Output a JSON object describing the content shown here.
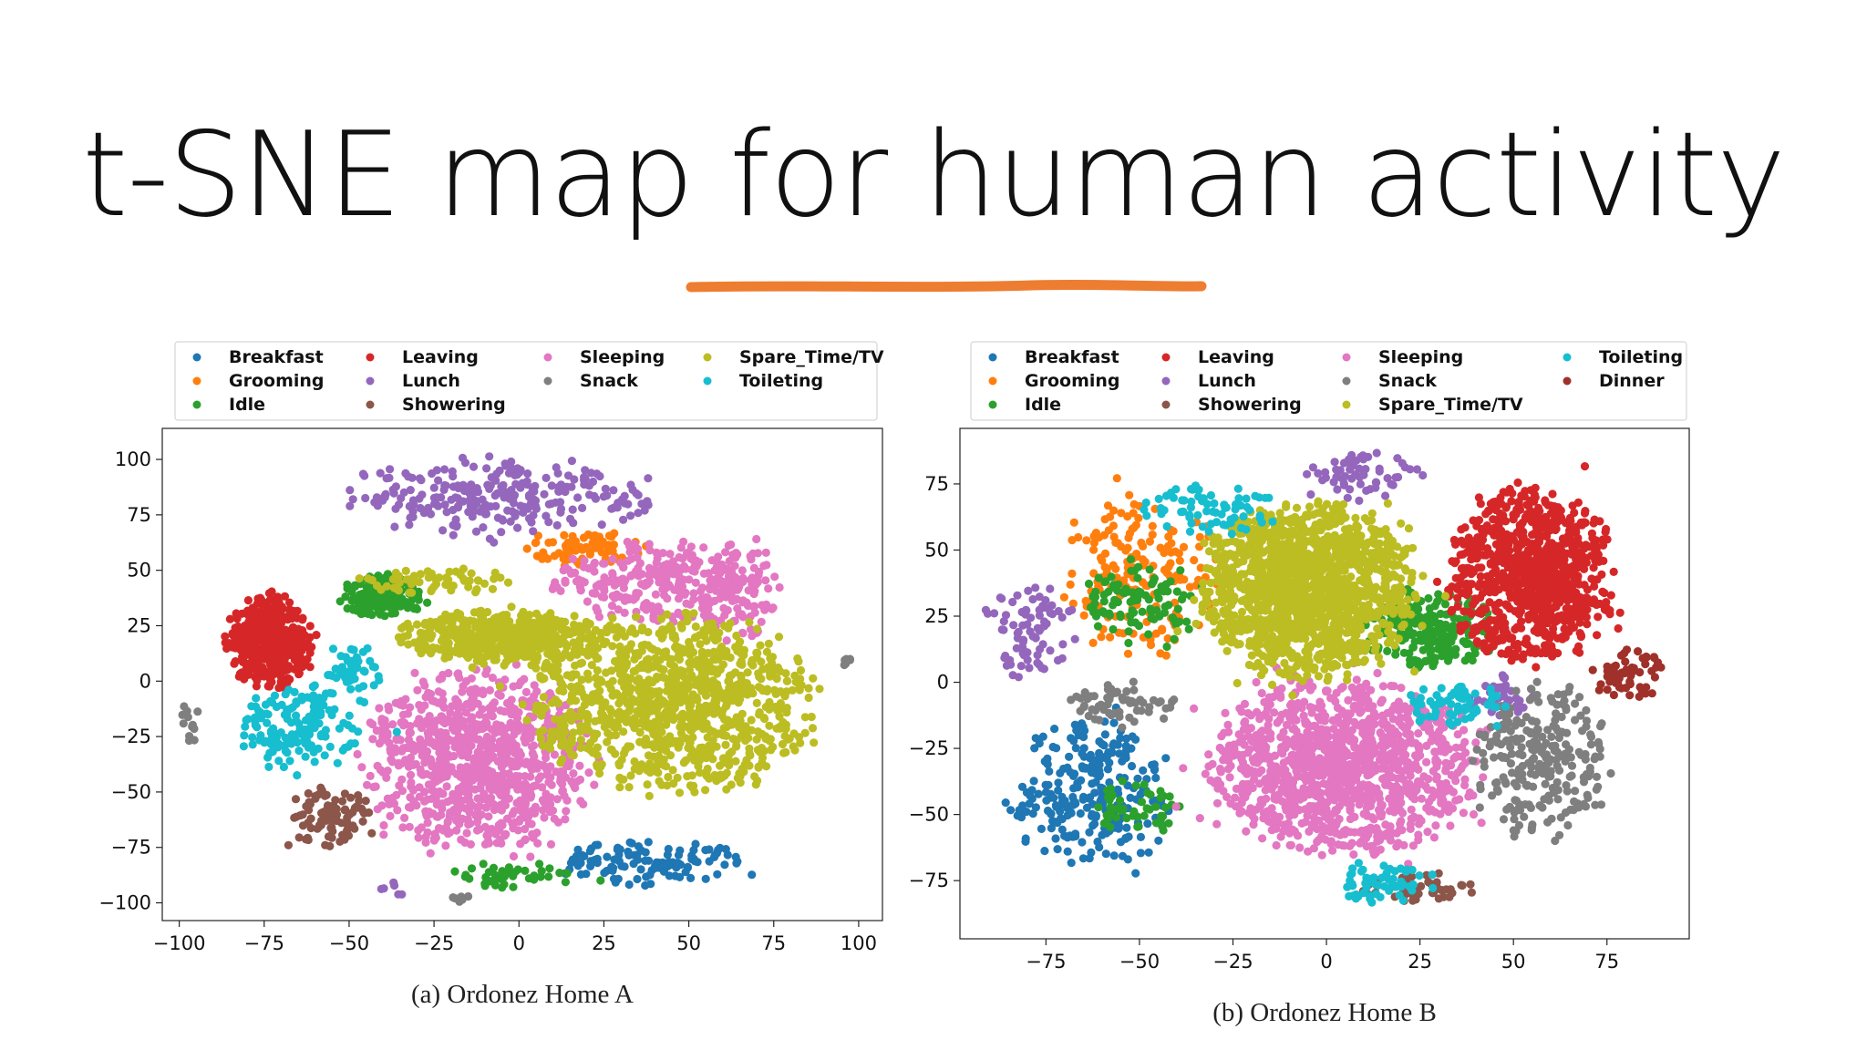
{
  "slide": {
    "title": "t-SNE map for human activity",
    "accent_color": "#ed7d31"
  },
  "chart_data": [
    {
      "type": "scatter",
      "caption": "(a) Ordonez Home A",
      "xlim": [
        -105,
        107
      ],
      "ylim": [
        -108,
        114
      ],
      "xticks": [
        -100,
        -75,
        -50,
        -25,
        0,
        25,
        50,
        75,
        100
      ],
      "yticks": [
        100,
        75,
        50,
        25,
        0,
        -25,
        -50,
        -75,
        -100
      ],
      "grid": false,
      "legend_position": "top",
      "legend_columns": [
        [
          "Breakfast",
          "Grooming",
          "Idle"
        ],
        [
          "Leaving",
          "Lunch",
          "Showering"
        ],
        [
          "Sleeping",
          "Snack"
        ],
        [
          "Spare_Time/TV",
          "Toileting"
        ]
      ],
      "series": [
        {
          "name": "Breakfast",
          "color": "#1f77b4",
          "clusters": [
            {
              "cx": 38,
              "cy": -82,
              "rx": 28,
              "ry": 10,
              "n": 120
            }
          ]
        },
        {
          "name": "Grooming",
          "color": "#ff7f0e",
          "clusters": [
            {
              "cx": 18,
              "cy": 60,
              "rx": 18,
              "ry": 8,
              "n": 80
            }
          ]
        },
        {
          "name": "Idle",
          "color": "#2ca02c",
          "clusters": [
            {
              "cx": -40,
              "cy": 38,
              "rx": 12,
              "ry": 10,
              "n": 160
            },
            {
              "cx": 0,
              "cy": -87,
              "rx": 22,
              "ry": 6,
              "n": 40
            }
          ]
        },
        {
          "name": "Leaving",
          "color": "#d62728",
          "clusters": [
            {
              "cx": -73,
              "cy": 18,
              "rx": 13,
              "ry": 21,
              "n": 420
            }
          ]
        },
        {
          "name": "Lunch",
          "color": "#9467bd",
          "clusters": [
            {
              "cx": -5,
              "cy": 83,
              "rx": 45,
              "ry": 18,
              "n": 260
            },
            {
              "cx": -37,
              "cy": -94,
              "rx": 4,
              "ry": 3,
              "n": 6
            }
          ]
        },
        {
          "name": "Showering",
          "color": "#8c564b",
          "clusters": [
            {
              "cx": -55,
              "cy": -62,
              "rx": 13,
              "ry": 14,
              "n": 90
            }
          ]
        },
        {
          "name": "Sleeping",
          "color": "#e377c2",
          "clusters": [
            {
              "cx": -12,
              "cy": -35,
              "rx": 34,
              "ry": 40,
              "n": 900
            },
            {
              "cx": 40,
              "cy": 45,
              "rx": 30,
              "ry": 18,
              "n": 260
            },
            {
              "cx": 65,
              "cy": 40,
              "rx": 12,
              "ry": 25,
              "n": 100
            }
          ]
        },
        {
          "name": "Snack",
          "color": "#7f7f7f",
          "clusters": [
            {
              "cx": -97,
              "cy": -18,
              "rx": 4,
              "ry": 12,
              "n": 12
            },
            {
              "cx": 97,
              "cy": 9,
              "rx": 2,
              "ry": 2,
              "n": 6
            },
            {
              "cx": -17,
              "cy": -98,
              "rx": 3,
              "ry": 2,
              "n": 6
            }
          ]
        },
        {
          "name": "Spare_Time/TV",
          "color": "#bcbd22",
          "clusters": [
            {
              "cx": 45,
              "cy": -10,
              "rx": 42,
              "ry": 40,
              "n": 1000
            },
            {
              "cx": -5,
              "cy": 20,
              "rx": 30,
              "ry": 12,
              "n": 500
            },
            {
              "cx": -25,
              "cy": 45,
              "rx": 22,
              "ry": 6,
              "n": 60
            }
          ]
        },
        {
          "name": "Toileting",
          "color": "#17becf",
          "clusters": [
            {
              "cx": -65,
              "cy": -22,
              "rx": 18,
              "ry": 20,
              "n": 150
            },
            {
              "cx": -48,
              "cy": 5,
              "rx": 8,
              "ry": 12,
              "n": 50
            }
          ]
        }
      ]
    },
    {
      "type": "scatter",
      "caption": "(b) Ordonez Home B",
      "xlim": [
        -98,
        97
      ],
      "ylim": [
        -97,
        96
      ],
      "xticks": [
        -75,
        -50,
        -25,
        0,
        25,
        50,
        75
      ],
      "yticks": [
        75,
        50,
        25,
        0,
        -25,
        -50,
        -75
      ],
      "grid": false,
      "legend_position": "top",
      "legend_columns": [
        [
          "Breakfast",
          "Grooming",
          "Idle"
        ],
        [
          "Leaving",
          "Lunch",
          "Showering"
        ],
        [
          "Sleeping",
          "Snack",
          "Spare_Time/TV"
        ],
        [
          "Toileting",
          "Dinner"
        ]
      ],
      "series": [
        {
          "name": "Breakfast",
          "color": "#1f77b4",
          "clusters": [
            {
              "cx": -62,
              "cy": -42,
              "rx": 22,
              "ry": 28,
              "n": 260
            }
          ]
        },
        {
          "name": "Grooming",
          "color": "#ff7f0e",
          "clusters": [
            {
              "cx": -50,
              "cy": 42,
              "rx": 22,
              "ry": 32,
              "n": 180
            }
          ]
        },
        {
          "name": "Idle",
          "color": "#2ca02c",
          "clusters": [
            {
              "cx": 28,
              "cy": 20,
              "rx": 18,
              "ry": 14,
              "n": 220
            },
            {
              "cx": -50,
              "cy": 30,
              "rx": 16,
              "ry": 16,
              "n": 100
            },
            {
              "cx": -50,
              "cy": -48,
              "rx": 12,
              "ry": 10,
              "n": 50
            }
          ]
        },
        {
          "name": "Leaving",
          "color": "#d62728",
          "clusters": [
            {
              "cx": 55,
              "cy": 40,
              "rx": 22,
              "ry": 33,
              "n": 900
            }
          ]
        },
        {
          "name": "Lunch",
          "color": "#9467bd",
          "clusters": [
            {
              "cx": -80,
              "cy": 20,
              "rx": 12,
              "ry": 18,
              "n": 80
            },
            {
              "cx": 8,
              "cy": 78,
              "rx": 18,
              "ry": 10,
              "n": 60
            },
            {
              "cx": 45,
              "cy": -5,
              "rx": 10,
              "ry": 8,
              "n": 40
            }
          ]
        },
        {
          "name": "Showering",
          "color": "#8c564b",
          "clusters": [
            {
              "cx": 25,
              "cy": -78,
              "rx": 16,
              "ry": 6,
              "n": 50
            }
          ]
        },
        {
          "name": "Sleeping",
          "color": "#e377c2",
          "clusters": [
            {
              "cx": 5,
              "cy": -32,
              "rx": 36,
              "ry": 33,
              "n": 1200
            }
          ]
        },
        {
          "name": "Snack",
          "color": "#7f7f7f",
          "clusters": [
            {
              "cx": 58,
              "cy": -30,
              "rx": 18,
              "ry": 30,
              "n": 260
            },
            {
              "cx": -55,
              "cy": -8,
              "rx": 15,
              "ry": 8,
              "n": 60
            }
          ]
        },
        {
          "name": "Spare_Time/TV",
          "color": "#bcbd22",
          "clusters": [
            {
              "cx": -5,
              "cy": 35,
              "rx": 28,
              "ry": 33,
              "n": 1500
            }
          ]
        },
        {
          "name": "Toileting",
          "color": "#17becf",
          "clusters": [
            {
              "cx": -30,
              "cy": 65,
              "rx": 18,
              "ry": 10,
              "n": 70
            },
            {
              "cx": 15,
              "cy": -75,
              "rx": 14,
              "ry": 8,
              "n": 60
            },
            {
              "cx": 35,
              "cy": -10,
              "rx": 14,
              "ry": 10,
              "n": 60
            }
          ]
        },
        {
          "name": "Dinner",
          "color": "#a0302a",
          "clusters": [
            {
              "cx": 80,
              "cy": 3,
              "rx": 10,
              "ry": 10,
              "n": 60
            }
          ]
        }
      ]
    }
  ]
}
